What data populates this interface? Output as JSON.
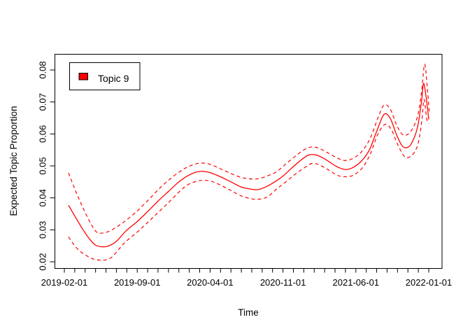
{
  "colors": {
    "series_red": "#ff0000",
    "axis_black": "#000000",
    "background": "#ffffff"
  },
  "chart_data": {
    "type": "line",
    "title": "",
    "xlabel": "Time",
    "ylabel": "Expected Topic Proportion",
    "grid": false,
    "box": true,
    "legend": {
      "position": "top-left",
      "label": "Topic 9",
      "swatch_fill": "#ff0000",
      "swatch_border": "#000000"
    },
    "x_axis": {
      "unit": "months since 2019-02-01",
      "minor_tick_every_months": 1,
      "minor_tick_count": 36,
      "major_tick_months": [
        0,
        7,
        14,
        21,
        28,
        35
      ],
      "major_tick_labels": [
        "2019-02-01",
        "2019-09-01",
        "2020-04-01",
        "2020-11-01",
        "2021-06-01",
        "2022-01-01"
      ]
    },
    "y_axis": {
      "range": [
        0.02,
        0.08
      ],
      "ticks": [
        0.02,
        0.03,
        0.04,
        0.05,
        0.06,
        0.07,
        0.08
      ],
      "tick_labels": [
        "0.02",
        "0.03",
        "0.04",
        "0.05",
        "0.06",
        "0.07",
        "0.08"
      ]
    },
    "series": [
      {
        "name": "Topic 9 expected proportion (mean)",
        "style": "solid",
        "color": "#ff0000",
        "points": [
          [
            0.4,
            0.0377
          ],
          [
            1.1,
            0.0338
          ],
          [
            1.8,
            0.03
          ],
          [
            2.5,
            0.0268
          ],
          [
            3.0,
            0.0252
          ],
          [
            3.6,
            0.0247
          ],
          [
            4.2,
            0.0249
          ],
          [
            5.0,
            0.0264
          ],
          [
            5.9,
            0.0296
          ],
          [
            7.0,
            0.0326
          ],
          [
            8.0,
            0.0357
          ],
          [
            9.0,
            0.039
          ],
          [
            10.0,
            0.042
          ],
          [
            11.0,
            0.045
          ],
          [
            11.8,
            0.0468
          ],
          [
            12.6,
            0.048
          ],
          [
            13.2,
            0.0483
          ],
          [
            14.0,
            0.0479
          ],
          [
            15.0,
            0.0466
          ],
          [
            16.0,
            0.045
          ],
          [
            17.0,
            0.0434
          ],
          [
            18.0,
            0.0427
          ],
          [
            18.6,
            0.0426
          ],
          [
            19.4,
            0.0435
          ],
          [
            20.3,
            0.0452
          ],
          [
            21.0,
            0.0468
          ],
          [
            22.0,
            0.0498
          ],
          [
            23.0,
            0.0525
          ],
          [
            23.6,
            0.0535
          ],
          [
            24.3,
            0.0533
          ],
          [
            25.2,
            0.0518
          ],
          [
            26.1,
            0.0499
          ],
          [
            26.9,
            0.0489
          ],
          [
            27.6,
            0.0493
          ],
          [
            28.5,
            0.0514
          ],
          [
            29.3,
            0.055
          ],
          [
            30.0,
            0.0608
          ],
          [
            30.7,
            0.0661
          ],
          [
            31.3,
            0.0649
          ],
          [
            31.9,
            0.0598
          ],
          [
            32.4,
            0.0565
          ],
          [
            32.8,
            0.0557
          ],
          [
            33.3,
            0.0568
          ],
          [
            33.9,
            0.0618
          ],
          [
            34.3,
            0.07
          ],
          [
            34.5,
            0.0758
          ],
          [
            34.75,
            0.0715
          ],
          [
            35.0,
            0.0645
          ]
        ]
      },
      {
        "name": "upper confidence bound",
        "style": "dashed",
        "color": "#ff0000",
        "points": [
          [
            0.4,
            0.0478
          ],
          [
            1.1,
            0.042
          ],
          [
            1.8,
            0.0368
          ],
          [
            2.5,
            0.0322
          ],
          [
            3.1,
            0.0293
          ],
          [
            3.7,
            0.029
          ],
          [
            4.4,
            0.0297
          ],
          [
            5.2,
            0.0313
          ],
          [
            5.9,
            0.0329
          ],
          [
            7.0,
            0.0359
          ],
          [
            8.0,
            0.0391
          ],
          [
            9.0,
            0.0425
          ],
          [
            10.0,
            0.0455
          ],
          [
            11.0,
            0.048
          ],
          [
            11.8,
            0.0496
          ],
          [
            12.6,
            0.0506
          ],
          [
            13.2,
            0.0509
          ],
          [
            14.0,
            0.0505
          ],
          [
            15.0,
            0.0491
          ],
          [
            16.0,
            0.0476
          ],
          [
            17.0,
            0.0464
          ],
          [
            18.0,
            0.0459
          ],
          [
            18.8,
            0.0461
          ],
          [
            19.6,
            0.047
          ],
          [
            20.4,
            0.0482
          ],
          [
            21.2,
            0.0504
          ],
          [
            22.1,
            0.0528
          ],
          [
            23.0,
            0.055
          ],
          [
            23.7,
            0.0559
          ],
          [
            24.4,
            0.0556
          ],
          [
            25.3,
            0.0541
          ],
          [
            26.2,
            0.0525
          ],
          [
            26.9,
            0.0517
          ],
          [
            27.7,
            0.0523
          ],
          [
            28.6,
            0.0546
          ],
          [
            29.4,
            0.0588
          ],
          [
            30.1,
            0.0648
          ],
          [
            30.7,
            0.069
          ],
          [
            31.3,
            0.0678
          ],
          [
            31.9,
            0.0629
          ],
          [
            32.4,
            0.0601
          ],
          [
            32.8,
            0.0596
          ],
          [
            33.3,
            0.0609
          ],
          [
            33.9,
            0.0652
          ],
          [
            34.3,
            0.0728
          ],
          [
            34.6,
            0.0818
          ],
          [
            34.85,
            0.0748
          ],
          [
            35.05,
            0.067
          ]
        ]
      },
      {
        "name": "lower confidence bound",
        "style": "dashed",
        "color": "#ff0000",
        "points": [
          [
            0.4,
            0.0278
          ],
          [
            1.1,
            0.0246
          ],
          [
            1.8,
            0.0226
          ],
          [
            2.6,
            0.0211
          ],
          [
            3.2,
            0.0206
          ],
          [
            3.8,
            0.0205
          ],
          [
            4.5,
            0.0213
          ],
          [
            5.2,
            0.0238
          ],
          [
            5.9,
            0.0263
          ],
          [
            7.0,
            0.0293
          ],
          [
            8.0,
            0.0323
          ],
          [
            9.0,
            0.0354
          ],
          [
            10.0,
            0.0385
          ],
          [
            11.0,
            0.0418
          ],
          [
            11.8,
            0.044
          ],
          [
            12.6,
            0.0451
          ],
          [
            13.3,
            0.0455
          ],
          [
            14.1,
            0.0452
          ],
          [
            15.0,
            0.044
          ],
          [
            16.0,
            0.0423
          ],
          [
            17.0,
            0.0406
          ],
          [
            18.0,
            0.0397
          ],
          [
            18.7,
            0.0396
          ],
          [
            19.5,
            0.0403
          ],
          [
            20.4,
            0.0428
          ],
          [
            21.2,
            0.0448
          ],
          [
            22.1,
            0.0472
          ],
          [
            23.0,
            0.0493
          ],
          [
            23.8,
            0.0508
          ],
          [
            24.5,
            0.0503
          ],
          [
            25.4,
            0.0487
          ],
          [
            26.2,
            0.0471
          ],
          [
            26.9,
            0.0466
          ],
          [
            27.7,
            0.047
          ],
          [
            28.6,
            0.0493
          ],
          [
            29.4,
            0.0538
          ],
          [
            30.1,
            0.0598
          ],
          [
            30.8,
            0.063
          ],
          [
            31.4,
            0.0614
          ],
          [
            32.0,
            0.0568
          ],
          [
            32.6,
            0.0532
          ],
          [
            33.0,
            0.0526
          ],
          [
            33.5,
            0.0537
          ],
          [
            34.0,
            0.0572
          ],
          [
            34.35,
            0.0645
          ],
          [
            34.55,
            0.0708
          ],
          [
            34.8,
            0.0648
          ],
          [
            35.0,
            0.0632
          ]
        ]
      }
    ]
  }
}
